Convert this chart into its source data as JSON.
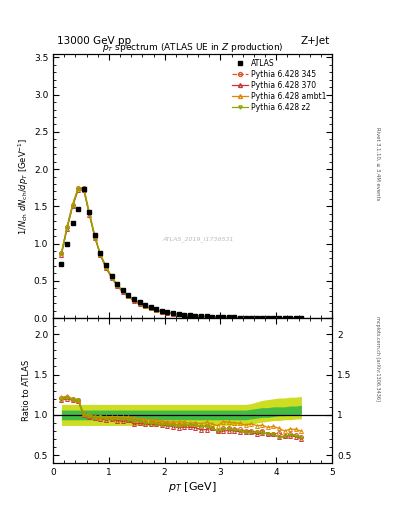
{
  "title_top": "13000 GeV pp",
  "title_right": "Z+Jet",
  "plot_title": "p_{T} spectrum (ATLAS UE in Z production)",
  "xlabel": "p_{T} [GeV]",
  "ylabel_main": "1/N_{ch} dN_{ch}/dp_{T} [GeV^{-1}]",
  "ylabel_ratio": "Ratio to ATLAS",
  "watermark": "ATLAS_2019_I1736531",
  "rivet_label": "Rivet 3.1.10, ≥ 3.4M events",
  "mcplots_label": "mcplots.cern.ch [arXiv:1306.3436]",
  "atlas_color": "#000000",
  "p345_color": "#e05020",
  "p370_color": "#cc3333",
  "pambt1_color": "#dd8800",
  "pz2_color": "#88aa00",
  "band_inner_color": "#44bb44",
  "band_outer_color": "#ccdd22",
  "atlas_pt": [
    0.15,
    0.25,
    0.35,
    0.45,
    0.55,
    0.65,
    0.75,
    0.85,
    0.95,
    1.05,
    1.15,
    1.25,
    1.35,
    1.45,
    1.55,
    1.65,
    1.75,
    1.85,
    1.95,
    2.05,
    2.15,
    2.25,
    2.35,
    2.45,
    2.55,
    2.65,
    2.75,
    2.85,
    2.95,
    3.05,
    3.15,
    3.25,
    3.35,
    3.45,
    3.55,
    3.65,
    3.75,
    3.85,
    3.95,
    4.05,
    4.15,
    4.25,
    4.35,
    4.45
  ],
  "atlas_y": [
    0.72,
    1.0,
    1.27,
    1.47,
    1.73,
    1.42,
    1.12,
    0.88,
    0.71,
    0.57,
    0.46,
    0.38,
    0.31,
    0.26,
    0.21,
    0.175,
    0.145,
    0.12,
    0.1,
    0.083,
    0.069,
    0.057,
    0.047,
    0.039,
    0.032,
    0.027,
    0.022,
    0.018,
    0.015,
    0.012,
    0.0098,
    0.0081,
    0.0067,
    0.0056,
    0.0046,
    0.0038,
    0.0031,
    0.0026,
    0.0021,
    0.0018,
    0.0015,
    0.0012,
    0.001,
    0.00085
  ],
  "mc_pt": [
    0.15,
    0.25,
    0.35,
    0.45,
    0.55,
    0.65,
    0.75,
    0.85,
    0.95,
    1.05,
    1.15,
    1.25,
    1.35,
    1.45,
    1.55,
    1.65,
    1.75,
    1.85,
    1.95,
    2.05,
    2.15,
    2.25,
    2.35,
    2.45,
    2.55,
    2.65,
    2.75,
    2.85,
    2.95,
    3.05,
    3.15,
    3.25,
    3.35,
    3.45,
    3.55,
    3.65,
    3.75,
    3.85,
    3.95,
    4.05,
    4.15,
    4.25,
    4.35,
    4.45
  ],
  "p345_y": [
    0.87,
    1.22,
    1.52,
    1.74,
    1.74,
    1.41,
    1.09,
    0.85,
    0.68,
    0.55,
    0.44,
    0.36,
    0.29,
    0.24,
    0.195,
    0.16,
    0.132,
    0.109,
    0.09,
    0.074,
    0.061,
    0.05,
    0.041,
    0.034,
    0.028,
    0.023,
    0.019,
    0.015,
    0.012,
    0.01,
    0.0082,
    0.0067,
    0.0055,
    0.0045,
    0.0037,
    0.003,
    0.0025,
    0.002,
    0.0016,
    0.0014,
    0.0011,
    0.00091,
    0.00075,
    0.00062
  ],
  "p370_y": [
    0.85,
    1.2,
    1.5,
    1.72,
    1.72,
    1.39,
    1.08,
    0.84,
    0.67,
    0.54,
    0.43,
    0.35,
    0.29,
    0.23,
    0.188,
    0.155,
    0.128,
    0.106,
    0.087,
    0.072,
    0.059,
    0.048,
    0.04,
    0.033,
    0.027,
    0.022,
    0.018,
    0.015,
    0.012,
    0.0096,
    0.0079,
    0.0065,
    0.0053,
    0.0044,
    0.0036,
    0.0029,
    0.0024,
    0.002,
    0.0016,
    0.0013,
    0.0011,
    0.00089,
    0.00073,
    0.0006
  ],
  "pambt1_y": [
    0.88,
    1.23,
    1.53,
    1.75,
    1.75,
    1.42,
    1.1,
    0.86,
    0.69,
    0.56,
    0.45,
    0.37,
    0.3,
    0.25,
    0.2,
    0.165,
    0.136,
    0.112,
    0.092,
    0.076,
    0.063,
    0.052,
    0.043,
    0.035,
    0.029,
    0.024,
    0.02,
    0.016,
    0.013,
    0.011,
    0.0089,
    0.0073,
    0.006,
    0.0049,
    0.0041,
    0.0033,
    0.0027,
    0.0022,
    0.0018,
    0.0015,
    0.0012,
    0.00099,
    0.00082,
    0.00068
  ],
  "pz2_y": [
    0.86,
    1.21,
    1.51,
    1.73,
    1.73,
    1.4,
    1.08,
    0.85,
    0.68,
    0.54,
    0.44,
    0.36,
    0.29,
    0.24,
    0.193,
    0.158,
    0.13,
    0.107,
    0.088,
    0.073,
    0.06,
    0.049,
    0.041,
    0.034,
    0.028,
    0.023,
    0.019,
    0.015,
    0.012,
    0.0099,
    0.0081,
    0.0066,
    0.0054,
    0.0044,
    0.0036,
    0.003,
    0.0024,
    0.002,
    0.0016,
    0.0013,
    0.0011,
    0.0009,
    0.00074,
    0.00061
  ],
  "ratio_pt": [
    0.15,
    0.25,
    0.35,
    0.45,
    0.55,
    0.65,
    0.75,
    0.85,
    0.95,
    1.05,
    1.15,
    1.25,
    1.35,
    1.45,
    1.55,
    1.65,
    1.75,
    1.85,
    1.95,
    2.05,
    2.15,
    2.25,
    2.35,
    2.45,
    2.55,
    2.65,
    2.75,
    2.85,
    2.95,
    3.05,
    3.15,
    3.25,
    3.35,
    3.45,
    3.55,
    3.65,
    3.75,
    3.85,
    3.95,
    4.05,
    4.15,
    4.25,
    4.35,
    4.45
  ],
  "ratio_p345": [
    1.21,
    1.22,
    1.2,
    1.18,
    1.01,
    0.99,
    0.97,
    0.97,
    0.96,
    0.96,
    0.96,
    0.95,
    0.94,
    0.92,
    0.929,
    0.914,
    0.91,
    0.908,
    0.9,
    0.892,
    0.884,
    0.877,
    0.872,
    0.872,
    0.875,
    0.852,
    0.864,
    0.833,
    0.8,
    0.833,
    0.837,
    0.827,
    0.821,
    0.804,
    0.804,
    0.789,
    0.806,
    0.769,
    0.762,
    0.778,
    0.733,
    0.758,
    0.75,
    0.729
  ],
  "ratio_p370": [
    1.18,
    1.2,
    1.18,
    1.17,
    1.0,
    0.98,
    0.96,
    0.95,
    0.94,
    0.95,
    0.93,
    0.92,
    0.935,
    0.885,
    0.895,
    0.886,
    0.883,
    0.883,
    0.87,
    0.867,
    0.855,
    0.842,
    0.851,
    0.846,
    0.844,
    0.815,
    0.818,
    0.833,
    0.8,
    0.8,
    0.806,
    0.802,
    0.791,
    0.786,
    0.783,
    0.763,
    0.774,
    0.769,
    0.762,
    0.722,
    0.733,
    0.742,
    0.73,
    0.706
  ],
  "ratio_pambt1": [
    1.22,
    1.23,
    1.2,
    1.19,
    1.01,
    1.0,
    0.98,
    0.98,
    0.97,
    0.98,
    0.978,
    0.974,
    0.968,
    0.962,
    0.952,
    0.943,
    0.938,
    0.933,
    0.92,
    0.916,
    0.913,
    0.912,
    0.915,
    0.897,
    0.906,
    0.889,
    0.909,
    0.889,
    0.867,
    0.917,
    0.908,
    0.901,
    0.896,
    0.875,
    0.891,
    0.868,
    0.871,
    0.846,
    0.857,
    0.833,
    0.8,
    0.825,
    0.82,
    0.8
  ],
  "ratio_pz2": [
    1.19,
    1.21,
    1.19,
    1.18,
    1.0,
    0.99,
    0.96,
    0.97,
    0.96,
    0.95,
    0.957,
    0.947,
    0.935,
    0.923,
    0.919,
    0.903,
    0.897,
    0.892,
    0.88,
    0.88,
    0.87,
    0.86,
    0.872,
    0.872,
    0.875,
    0.852,
    0.864,
    0.833,
    0.8,
    0.825,
    0.827,
    0.815,
    0.806,
    0.786,
    0.783,
    0.789,
    0.774,
    0.769,
    0.762,
    0.722,
    0.733,
    0.75,
    0.74,
    0.718
  ],
  "band_pt": [
    0.15,
    0.25,
    0.35,
    0.45,
    0.55,
    0.65,
    0.75,
    0.85,
    0.95,
    1.05,
    1.15,
    1.25,
    1.35,
    1.45,
    1.55,
    1.65,
    1.75,
    1.85,
    1.95,
    2.05,
    2.15,
    2.25,
    2.35,
    2.45,
    2.55,
    2.65,
    2.75,
    2.85,
    2.95,
    3.05,
    3.15,
    3.25,
    3.35,
    3.45,
    3.55,
    3.65,
    3.75,
    3.85,
    3.95,
    4.05,
    4.15,
    4.25,
    4.35,
    4.45
  ],
  "band_inner_lo": [
    0.94,
    0.94,
    0.94,
    0.94,
    0.94,
    0.94,
    0.94,
    0.94,
    0.94,
    0.94,
    0.94,
    0.94,
    0.94,
    0.94,
    0.94,
    0.94,
    0.94,
    0.94,
    0.94,
    0.94,
    0.94,
    0.94,
    0.94,
    0.94,
    0.94,
    0.94,
    0.94,
    0.94,
    0.94,
    0.94,
    0.94,
    0.94,
    0.94,
    0.94,
    0.95,
    0.96,
    0.97,
    0.97,
    0.98,
    0.99,
    0.99,
    1.0,
    1.0,
    1.01
  ],
  "band_inner_hi": [
    1.06,
    1.06,
    1.06,
    1.06,
    1.06,
    1.06,
    1.06,
    1.06,
    1.06,
    1.06,
    1.06,
    1.06,
    1.06,
    1.06,
    1.06,
    1.06,
    1.06,
    1.06,
    1.06,
    1.06,
    1.06,
    1.06,
    1.06,
    1.06,
    1.06,
    1.06,
    1.06,
    1.06,
    1.06,
    1.06,
    1.06,
    1.06,
    1.06,
    1.06,
    1.07,
    1.08,
    1.09,
    1.09,
    1.1,
    1.1,
    1.1,
    1.11,
    1.11,
    1.12
  ],
  "band_outer_lo": [
    0.87,
    0.87,
    0.87,
    0.87,
    0.87,
    0.87,
    0.87,
    0.87,
    0.87,
    0.87,
    0.87,
    0.87,
    0.87,
    0.87,
    0.87,
    0.87,
    0.87,
    0.87,
    0.87,
    0.87,
    0.87,
    0.87,
    0.87,
    0.87,
    0.87,
    0.87,
    0.87,
    0.87,
    0.87,
    0.87,
    0.87,
    0.87,
    0.87,
    0.87,
    0.88,
    0.9,
    0.91,
    0.92,
    0.93,
    0.93,
    0.94,
    0.94,
    0.95,
    0.95
  ],
  "band_outer_hi": [
    1.13,
    1.13,
    1.13,
    1.13,
    1.13,
    1.13,
    1.13,
    1.13,
    1.13,
    1.13,
    1.13,
    1.13,
    1.13,
    1.13,
    1.13,
    1.13,
    1.13,
    1.13,
    1.13,
    1.13,
    1.13,
    1.13,
    1.13,
    1.13,
    1.13,
    1.13,
    1.13,
    1.13,
    1.13,
    1.13,
    1.13,
    1.13,
    1.13,
    1.13,
    1.14,
    1.16,
    1.18,
    1.19,
    1.2,
    1.21,
    1.21,
    1.22,
    1.22,
    1.23
  ]
}
